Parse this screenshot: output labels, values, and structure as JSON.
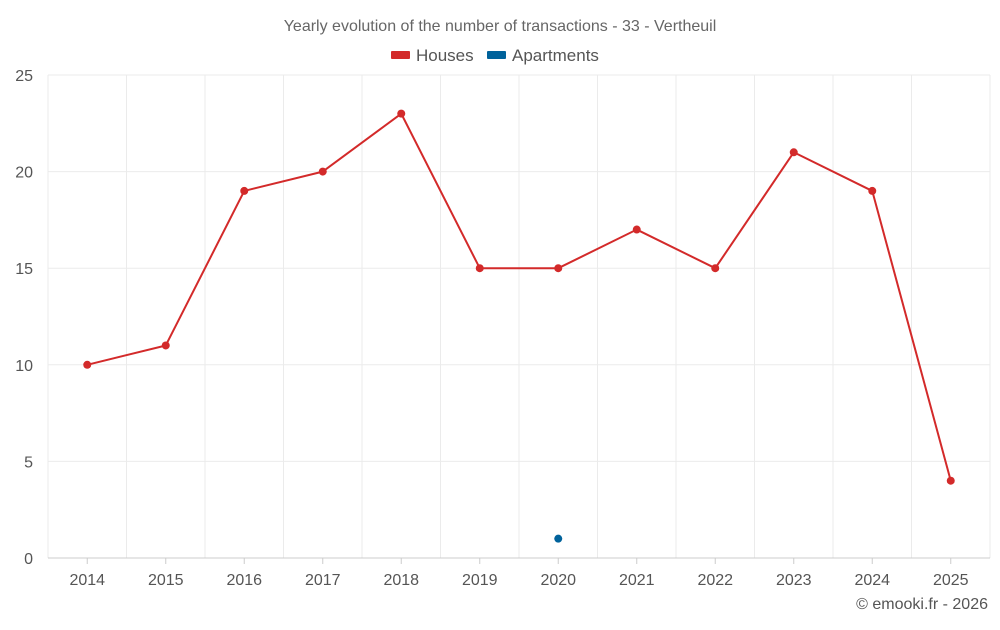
{
  "chart_data": {
    "type": "line",
    "title": "Yearly evolution of the number of transactions - 33 - Vertheuil",
    "categories": [
      "2014",
      "2015",
      "2016",
      "2017",
      "2018",
      "2019",
      "2020",
      "2021",
      "2022",
      "2023",
      "2024",
      "2025"
    ],
    "series": [
      {
        "name": "Houses",
        "color": "#d32a2a",
        "values": [
          10,
          11,
          19,
          20,
          23,
          15,
          15,
          17,
          15,
          21,
          19,
          4
        ]
      },
      {
        "name": "Apartments",
        "color": "#00629b",
        "values": [
          null,
          null,
          null,
          null,
          null,
          null,
          1,
          null,
          null,
          null,
          null,
          null
        ]
      }
    ],
    "ylim": [
      0,
      25
    ],
    "yticks": [
      "0",
      "5",
      "10",
      "15",
      "20",
      "25"
    ],
    "xlabel": "",
    "ylabel": "",
    "legend": "top-center",
    "grid": true
  },
  "credit": "© emooki.fr - 2026"
}
